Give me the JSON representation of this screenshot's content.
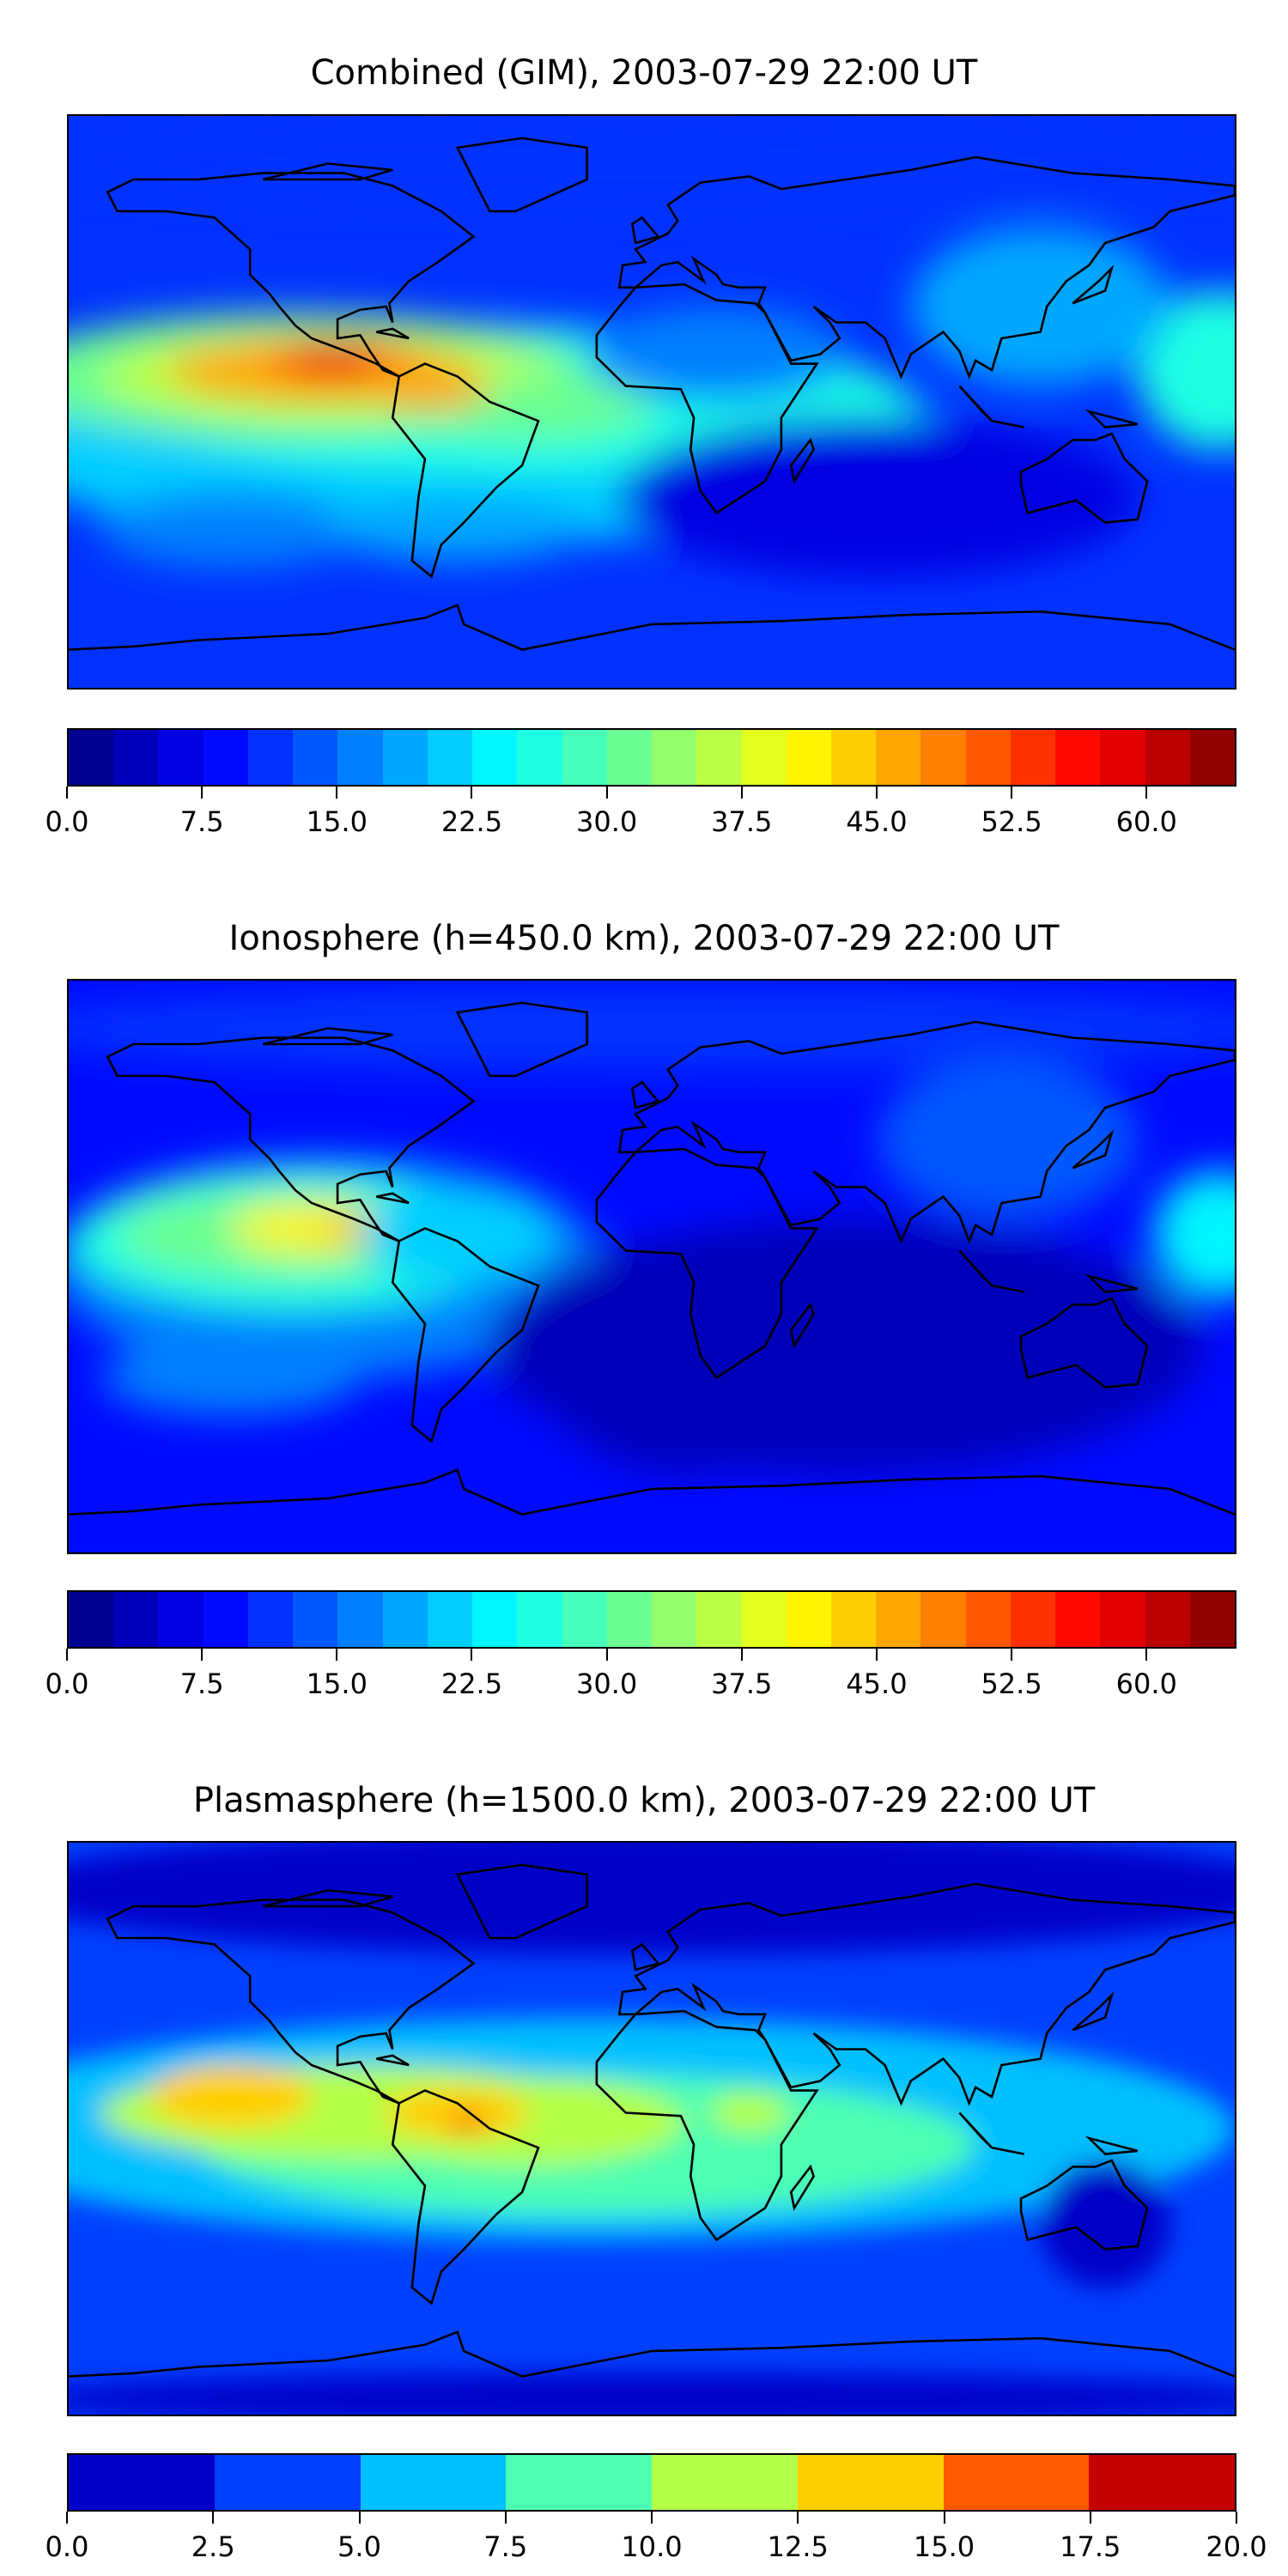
{
  "chart_data": [
    {
      "type": "heatmap",
      "title": "Combined (GIM), 2003-07-29 22:00 UT",
      "projection": "global lat-lon map with coastlines",
      "colormap": "jet",
      "levels": {
        "min": 0.0,
        "max": 65.0,
        "step": 2.5
      },
      "colorbar_ticks": [
        "0.0",
        "7.5",
        "15.0",
        "22.5",
        "30.0",
        "37.5",
        "45.0",
        "52.5",
        "60.0"
      ],
      "features": [
        {
          "region": "Eastern Pacific / Central America",
          "approx_value": 57.5
        },
        {
          "region": "Tropical Atlantic / South America",
          "approx_value": 35
        },
        {
          "region": "Western Pacific (east edge)",
          "approx_value": 27.5
        },
        {
          "region": "Indian Ocean / high latitudes",
          "approx_value": 10
        }
      ]
    },
    {
      "type": "heatmap",
      "title": "Ionosphere  (h=450.0 km), 2003-07-29 22:00 UT",
      "projection": "global lat-lon map with coastlines",
      "colormap": "jet",
      "levels": {
        "min": 0.0,
        "max": 65.0,
        "step": 2.5
      },
      "colorbar_ticks": [
        "0.0",
        "7.5",
        "15.0",
        "22.5",
        "30.0",
        "37.5",
        "45.0",
        "52.5",
        "60.0"
      ],
      "features": [
        {
          "region": "Eastern Pacific / Central America",
          "approx_value": 45
        },
        {
          "region": "Tropical Pacific west of Americas",
          "approx_value": 32.5
        },
        {
          "region": "Western Pacific (east edge)",
          "approx_value": 25
        },
        {
          "region": "Indian Ocean / South Atlantic",
          "approx_value": 2.5
        }
      ]
    },
    {
      "type": "heatmap",
      "title": "Plasmasphere (h=1500.0 km), 2003-07-29 22:00 UT",
      "projection": "global lat-lon map with coastlines",
      "colormap": "jet",
      "levels": {
        "min": 0.0,
        "max": 20.0,
        "step": 2.5
      },
      "colorbar_ticks": [
        "0.0",
        "2.5",
        "5.0",
        "7.5",
        "10.0",
        "12.5",
        "15.0",
        "17.5",
        "20.0"
      ],
      "features": [
        {
          "region": "Northern South America",
          "approx_value": 16
        },
        {
          "region": "Eastern Pacific",
          "approx_value": 13
        },
        {
          "region": "Tropics / Africa",
          "approx_value": 8.5
        },
        {
          "region": "High latitudes",
          "approx_value": 1.5
        }
      ]
    }
  ],
  "colors": {
    "plasma_bins": [
      "#0000c8",
      "#0040ff",
      "#00c0ff",
      "#4dffb3",
      "#b3ff47",
      "#ffd000",
      "#ff5a00",
      "#c40000"
    ]
  }
}
